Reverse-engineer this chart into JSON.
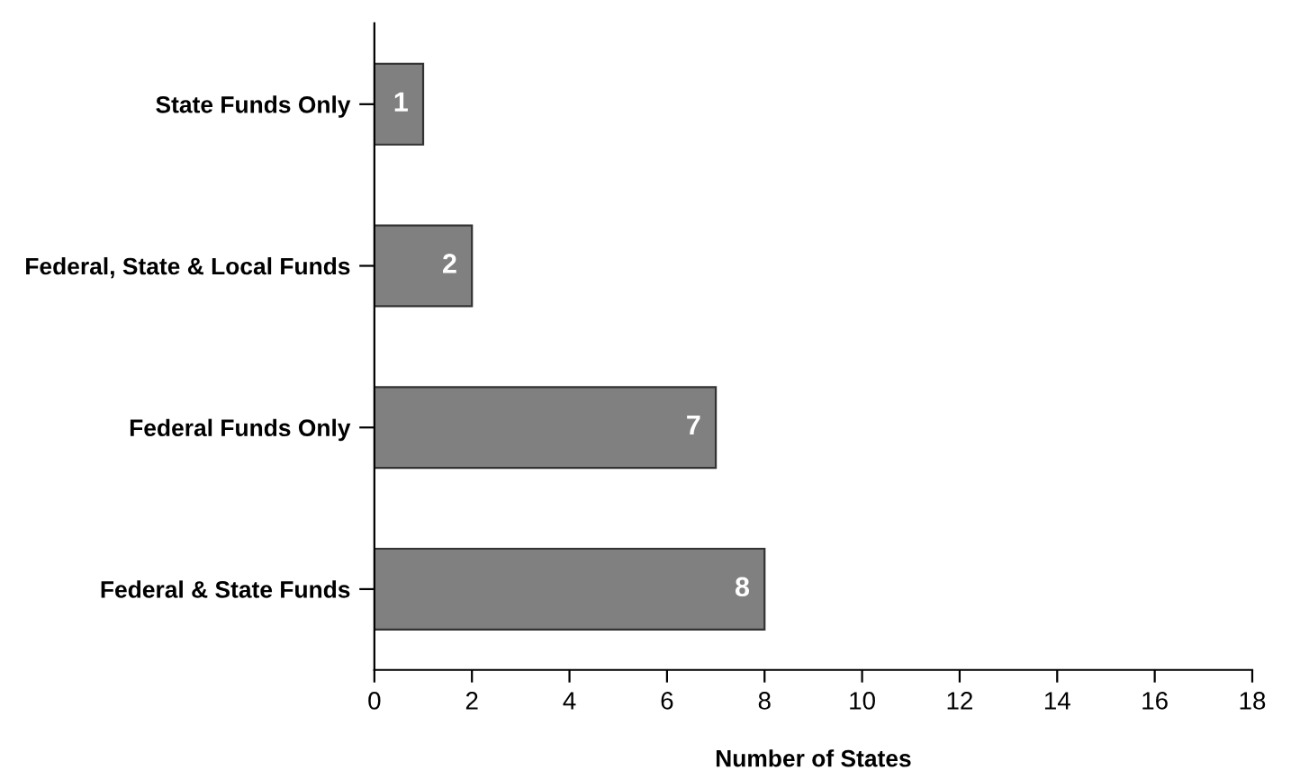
{
  "chart_data": {
    "type": "bar",
    "orientation": "horizontal",
    "xlabel": "Number of States",
    "categories": [
      "State Funds Only",
      "Federal, State & Local Funds",
      "Federal Funds Only",
      "Federal & State Funds"
    ],
    "values": [
      1,
      2,
      7,
      8
    ],
    "color": "#808080",
    "xlim": [
      0,
      18
    ],
    "xticks": [
      0,
      2,
      4,
      6,
      8,
      10,
      12,
      14,
      16,
      18
    ],
    "data_labels": true,
    "grid": false,
    "legend": false
  }
}
